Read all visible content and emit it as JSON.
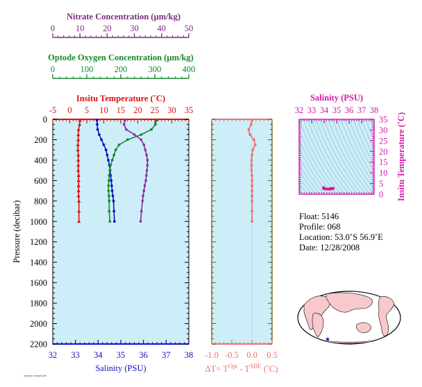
{
  "info": {
    "float": "Float:  5146",
    "profile": "Profile:  068",
    "location": "Location:  53.0˚S  56.9˚E",
    "date": "Date:  12/28/2008"
  },
  "footnote": "ZZZZZZ 7/28/2010 PE",
  "chart_data": [
    {
      "type": "line",
      "name": "main-profile",
      "ylabel": "Pressure (decibar)",
      "ylim": [
        2200,
        0
      ],
      "yticks": [
        0,
        200,
        400,
        600,
        800,
        1000,
        1200,
        1400,
        1600,
        1800,
        2000,
        2200
      ],
      "axes": {
        "nitrate": {
          "label": "Nitrate Concentration (µm/kg)",
          "lim": [
            0,
            50
          ],
          "ticks": [
            0,
            10,
            20,
            30,
            40,
            50
          ],
          "color": "#7a2a82"
        },
        "oxygen": {
          "label": "Optode Oxygen Concentration (µm/kg)",
          "lim": [
            0,
            400
          ],
          "ticks": [
            0,
            100,
            200,
            300,
            400
          ],
          "color": "#138a2c"
        },
        "temperature": {
          "label": "Insitu Temperature (˚C)",
          "lim": [
            -5,
            35
          ],
          "ticks": [
            -5,
            0,
            5,
            10,
            15,
            20,
            25,
            30,
            35
          ],
          "color": "#e01010"
        },
        "salinity": {
          "label": "Salinity (PSU)",
          "lim": [
            32,
            38
          ],
          "ticks": [
            32,
            33,
            34,
            35,
            36,
            37,
            38
          ],
          "color": "#1010c0"
        }
      },
      "series": [
        {
          "axis": "temperature",
          "color": "#e01010",
          "marker": "triangle",
          "x": [
            3.0,
            2.9,
            2.6,
            2.5,
            2.5,
            2.4,
            2.4,
            2.5,
            2.5,
            2.5,
            2.5,
            2.6,
            2.6,
            2.6,
            2.6,
            2.6,
            2.7,
            2.7,
            2.7
          ],
          "y": [
            10,
            50,
            100,
            150,
            200,
            250,
            300,
            350,
            400,
            450,
            500,
            550,
            600,
            650,
            700,
            750,
            800,
            900,
            1000
          ]
        },
        {
          "axis": "salinity",
          "color": "#1010c0",
          "marker": "circle",
          "x": [
            33.95,
            33.96,
            33.98,
            34.05,
            34.15,
            34.25,
            34.35,
            34.4,
            34.45,
            34.5,
            34.53,
            34.55,
            34.58,
            34.6,
            34.62,
            34.65,
            34.68,
            34.7,
            34.72
          ],
          "y": [
            10,
            50,
            100,
            150,
            200,
            250,
            300,
            350,
            400,
            450,
            500,
            550,
            600,
            650,
            700,
            750,
            800,
            900,
            1000
          ]
        },
        {
          "axis": "oxygen",
          "color": "#138a2c",
          "marker": "circle",
          "x": [
            305,
            302,
            290,
            260,
            220,
            195,
            185,
            180,
            175,
            170,
            168,
            166,
            165,
            164,
            164,
            165,
            166,
            166,
            168
          ],
          "y": [
            10,
            50,
            100,
            150,
            200,
            250,
            300,
            350,
            400,
            450,
            500,
            550,
            600,
            650,
            700,
            750,
            800,
            900,
            1000
          ]
        },
        {
          "axis": "nitrate",
          "color": "#8a2a9a",
          "marker": "square",
          "x": [
            26.5,
            26.2,
            27.0,
            30.0,
            32.5,
            33.5,
            34.0,
            34.5,
            34.8,
            34.8,
            34.6,
            34.4,
            34.2,
            33.8,
            33.5,
            33.2,
            33.0,
            32.6,
            32.3
          ],
          "y": [
            10,
            50,
            100,
            150,
            200,
            250,
            300,
            350,
            400,
            450,
            500,
            550,
            600,
            650,
            700,
            750,
            800,
            900,
            1000
          ]
        }
      ]
    },
    {
      "type": "line",
      "name": "delta-t-profile",
      "xlabel": "ΔT= T",
      "xlabel_sup1": "Opt",
      "xlabel_mid": " - T",
      "xlabel_sup2": "SBE",
      "xlabel_end": " (˚C)",
      "xlim": [
        -1.0,
        0.5
      ],
      "xticks": [
        -1.0,
        -0.5,
        0.0,
        0.5
      ],
      "xticklabels": [
        "-1.0",
        "-0.5",
        "0.0",
        "0.5"
      ],
      "ylim": [
        2200,
        0
      ],
      "color": "#f07070",
      "series": [
        {
          "x": [
            0.0,
            -0.02,
            -0.08,
            -0.05,
            0.05,
            0.08,
            0.02,
            0.0,
            -0.01,
            -0.01,
            -0.01,
            0.0,
            0.0,
            0.0,
            0.0,
            0.0,
            0.0,
            0.0,
            0.0
          ],
          "y": [
            10,
            50,
            100,
            150,
            200,
            250,
            300,
            350,
            400,
            450,
            500,
            550,
            600,
            650,
            700,
            750,
            800,
            900,
            1000
          ]
        }
      ]
    },
    {
      "type": "scatter",
      "name": "ts-diagram",
      "xlabel": "Salinity (PSU)",
      "ylabel": "Insitu Temperature (˚C)",
      "xlim": [
        32,
        38
      ],
      "ylim": [
        0,
        35
      ],
      "xticks": [
        32,
        33,
        34,
        35,
        36,
        37,
        38
      ],
      "yticks": [
        0,
        5,
        10,
        15,
        20,
        25,
        30,
        35
      ],
      "color": "#e0169a",
      "series": [
        {
          "x": [
            33.95,
            33.98,
            34.1,
            34.3,
            34.45,
            34.55,
            34.62,
            34.7,
            34.72
          ],
          "y": [
            3.0,
            2.6,
            2.5,
            2.4,
            2.5,
            2.5,
            2.6,
            2.7,
            2.7
          ]
        }
      ]
    }
  ]
}
